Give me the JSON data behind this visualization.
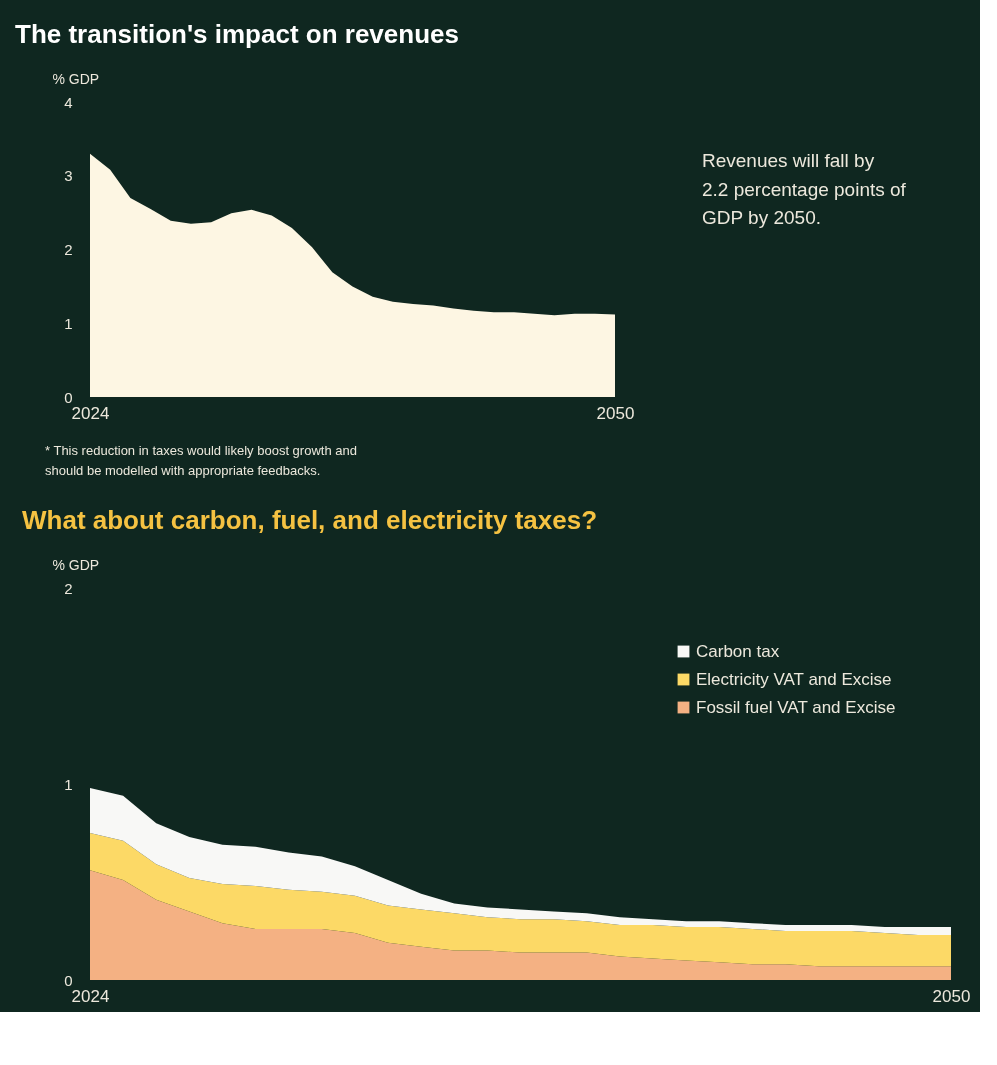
{
  "chart_data": [
    {
      "type": "area",
      "title": "The transition's impact on revenues",
      "ylabel": "% GDP",
      "x": [
        2024,
        2025,
        2026,
        2027,
        2028,
        2029,
        2030,
        2031,
        2032,
        2033,
        2034,
        2035,
        2036,
        2037,
        2038,
        2039,
        2040,
        2041,
        2042,
        2043,
        2044,
        2045,
        2046,
        2047,
        2048,
        2049,
        2050
      ],
      "series": [
        {
          "color": "#fdf6e3",
          "values": [
            3.3,
            3.08,
            2.7,
            2.55,
            2.39,
            2.35,
            2.37,
            2.49,
            2.54,
            2.46,
            2.29,
            2.03,
            1.69,
            1.5,
            1.36,
            1.29,
            1.26,
            1.24,
            1.2,
            1.17,
            1.15,
            1.15,
            1.13,
            1.11,
            1.13,
            1.13,
            1.12
          ]
        }
      ],
      "xlim": [
        2024,
        2050
      ],
      "xticks": [
        2024,
        2050
      ],
      "ylim": [
        0,
        4
      ],
      "yticks": [
        0,
        1,
        2,
        3,
        4
      ],
      "grid": false,
      "annotations": [
        "Revenues will fall by 2.2 percentage points of GDP by 2050.",
        "* This reduction in taxes would likely boost growth and should be modelled with appropriate feedbacks."
      ]
    },
    {
      "type": "area",
      "title": "What about carbon, fuel, and electricity taxes?",
      "ylabel": "% GDP",
      "stacked": true,
      "legend": "top right",
      "x": [
        2024,
        2025,
        2026,
        2027,
        2028,
        2029,
        2030,
        2031,
        2032,
        2033,
        2034,
        2035,
        2036,
        2037,
        2038,
        2039,
        2040,
        2041,
        2042,
        2043,
        2044,
        2045,
        2046,
        2047,
        2048,
        2049,
        2050
      ],
      "series": [
        {
          "name": "Fossil fuel VAT and Excise",
          "color": "#f4b183",
          "values": [
            0.56,
            0.51,
            0.41,
            0.35,
            0.29,
            0.26,
            0.26,
            0.26,
            0.24,
            0.19,
            0.17,
            0.15,
            0.15,
            0.14,
            0.14,
            0.14,
            0.12,
            0.11,
            0.1,
            0.09,
            0.08,
            0.08,
            0.07,
            0.07,
            0.07,
            0.07,
            0.07
          ]
        },
        {
          "name": "Electricity VAT and Excise",
          "color": "#fcd966",
          "values": [
            0.19,
            0.2,
            0.18,
            0.17,
            0.2,
            0.22,
            0.2,
            0.19,
            0.19,
            0.19,
            0.19,
            0.19,
            0.17,
            0.17,
            0.17,
            0.16,
            0.16,
            0.17,
            0.17,
            0.18,
            0.18,
            0.17,
            0.18,
            0.18,
            0.17,
            0.16,
            0.16
          ]
        },
        {
          "name": "Carbon tax",
          "color": "#f8f8f6",
          "values": [
            0.23,
            0.23,
            0.21,
            0.21,
            0.2,
            0.2,
            0.19,
            0.18,
            0.15,
            0.13,
            0.08,
            0.05,
            0.05,
            0.05,
            0.04,
            0.04,
            0.04,
            0.03,
            0.03,
            0.03,
            0.03,
            0.03,
            0.03,
            0.03,
            0.03,
            0.04,
            0.04
          ]
        }
      ],
      "xlim": [
        2024,
        2050
      ],
      "xticks": [
        2024,
        2050
      ],
      "ylim": [
        0,
        2
      ],
      "yticks": [
        0,
        1,
        2
      ],
      "grid": false
    }
  ]
}
